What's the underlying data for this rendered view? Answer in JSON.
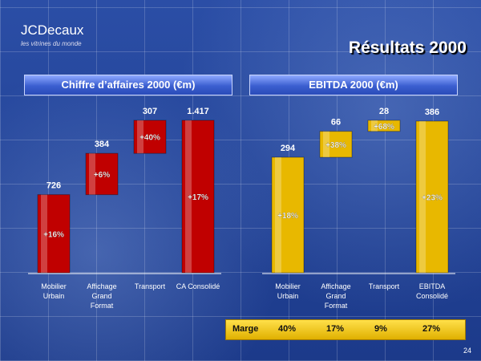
{
  "header": {
    "logo": "JCDecaux",
    "tagline": "les vitrines du monde",
    "title": "Résultats 2000"
  },
  "page_number": "24",
  "chart_data": [
    {
      "type": "waterfall",
      "title": "Chiffre d’affaires 2000 (€m)",
      "categories": [
        "Mobilier Urbain",
        "Affichage Grand Format",
        "Transport",
        "CA Consolidé"
      ],
      "values": [
        726,
        384,
        307,
        1417
      ],
      "value_labels": [
        "726",
        "384",
        "307",
        "1.417"
      ],
      "annotations": [
        "+16%",
        "+6%",
        "+40%",
        "+17%"
      ],
      "color": "#c00000"
    },
    {
      "type": "waterfall",
      "title": "EBITDA 2000 (€m)",
      "categories": [
        "Mobilier Urbain",
        "Affichage Grand Format",
        "Transport",
        "EBITDA Consolidé"
      ],
      "values": [
        294,
        66,
        28,
        386
      ],
      "annotations": [
        "+18%",
        "+38%",
        "+68%",
        "+23%"
      ],
      "color": "#e8b800",
      "margin": {
        "label": "Marge",
        "values": [
          "40%",
          "17%",
          "9%",
          "27%"
        ]
      }
    }
  ]
}
